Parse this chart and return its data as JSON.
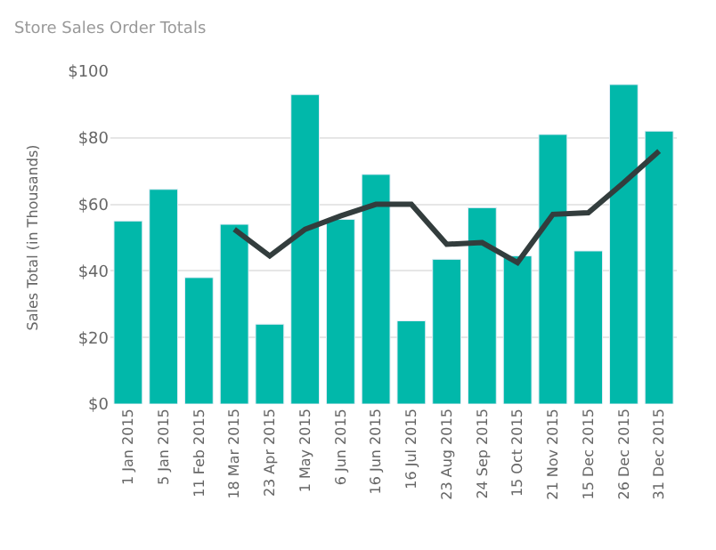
{
  "chart_data": {
    "type": "bar",
    "title": "Store Sales Order Totals",
    "ylabel": "Sales Total (in Thousands)",
    "categories": [
      "1 Jan 2015",
      "5 Jan 2015",
      "11 Feb 2015",
      "18 Mar 2015",
      "23 Apr 2015",
      "1 May 2015",
      "6 Jun 2015",
      "16 Jun 2015",
      "16 Jul 2015",
      "23 Aug 2015",
      "24 Sep 2015",
      "15 Oct 2015",
      "21 Nov 2015",
      "15 Dec 2015",
      "26 Dec 2015",
      "31 Dec 2015"
    ],
    "series": [
      {
        "color": "#01b8aa",
        "values": [
          55,
          64.5,
          38,
          54,
          24,
          93,
          55.5,
          69,
          25,
          43.5,
          59,
          44.5,
          81,
          46,
          96,
          82
        ]
      },
      {
        "type": "line",
        "color": "#333d3d",
        "values": [
          null,
          null,
          null,
          52.5,
          44.5,
          52.5,
          56.5,
          60,
          60,
          48,
          48.5,
          42.5,
          57,
          57.5,
          66.5,
          76
        ]
      }
    ],
    "ylim": [
      0,
      100
    ],
    "yticks": [
      {
        "value": 0,
        "label": "$0"
      },
      {
        "value": 20,
        "label": "$20"
      },
      {
        "value": 40,
        "label": "$40"
      },
      {
        "value": 60,
        "label": "$60"
      },
      {
        "value": 80,
        "label": "$80"
      },
      {
        "value": 100,
        "label": "$100"
      }
    ],
    "grid": "y"
  }
}
